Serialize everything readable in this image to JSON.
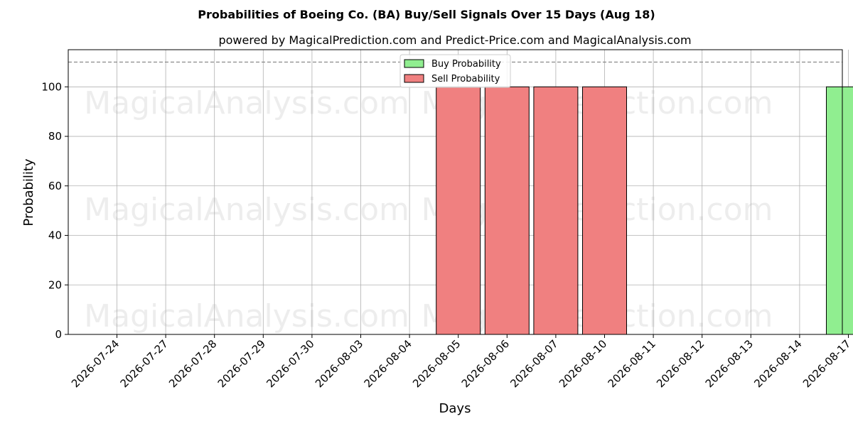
{
  "chart_data": {
    "type": "bar",
    "title": "Probabilities of Boeing Co. (BA) Buy/Sell Signals Over 15 Days (Aug 18)",
    "subtitle": "powered by MagicalPrediction.com and Predict-Price.com and MagicalAnalysis.com",
    "xlabel": "Days",
    "ylabel": "Probability",
    "ylim": [
      0,
      115
    ],
    "yticks": [
      0,
      20,
      40,
      60,
      80,
      100
    ],
    "reference_line": 110,
    "grid": true,
    "legend_position": "top-center",
    "categories": [
      "2026-07-24",
      "2026-07-27",
      "2026-07-28",
      "2026-07-29",
      "2026-07-30",
      "2026-08-03",
      "2026-08-04",
      "2026-08-05",
      "2026-08-06",
      "2026-08-07",
      "2026-08-10",
      "2026-08-11",
      "2026-08-12",
      "2026-08-13",
      "2026-08-14",
      "2026-08-17"
    ],
    "series": [
      {
        "name": "Buy Probability",
        "color": "#90ee90",
        "values": [
          0,
          0,
          0,
          0,
          0,
          0,
          0,
          0,
          0,
          0,
          0,
          0,
          0,
          0,
          0,
          100
        ]
      },
      {
        "name": "Sell Probability",
        "color": "#f08080",
        "values": [
          0,
          0,
          0,
          0,
          0,
          0,
          0,
          100,
          100,
          100,
          100,
          0,
          0,
          0,
          0,
          0
        ]
      }
    ],
    "watermarks": [
      "MagicalAnalysis.com",
      "MagicalPrediction.com"
    ]
  }
}
